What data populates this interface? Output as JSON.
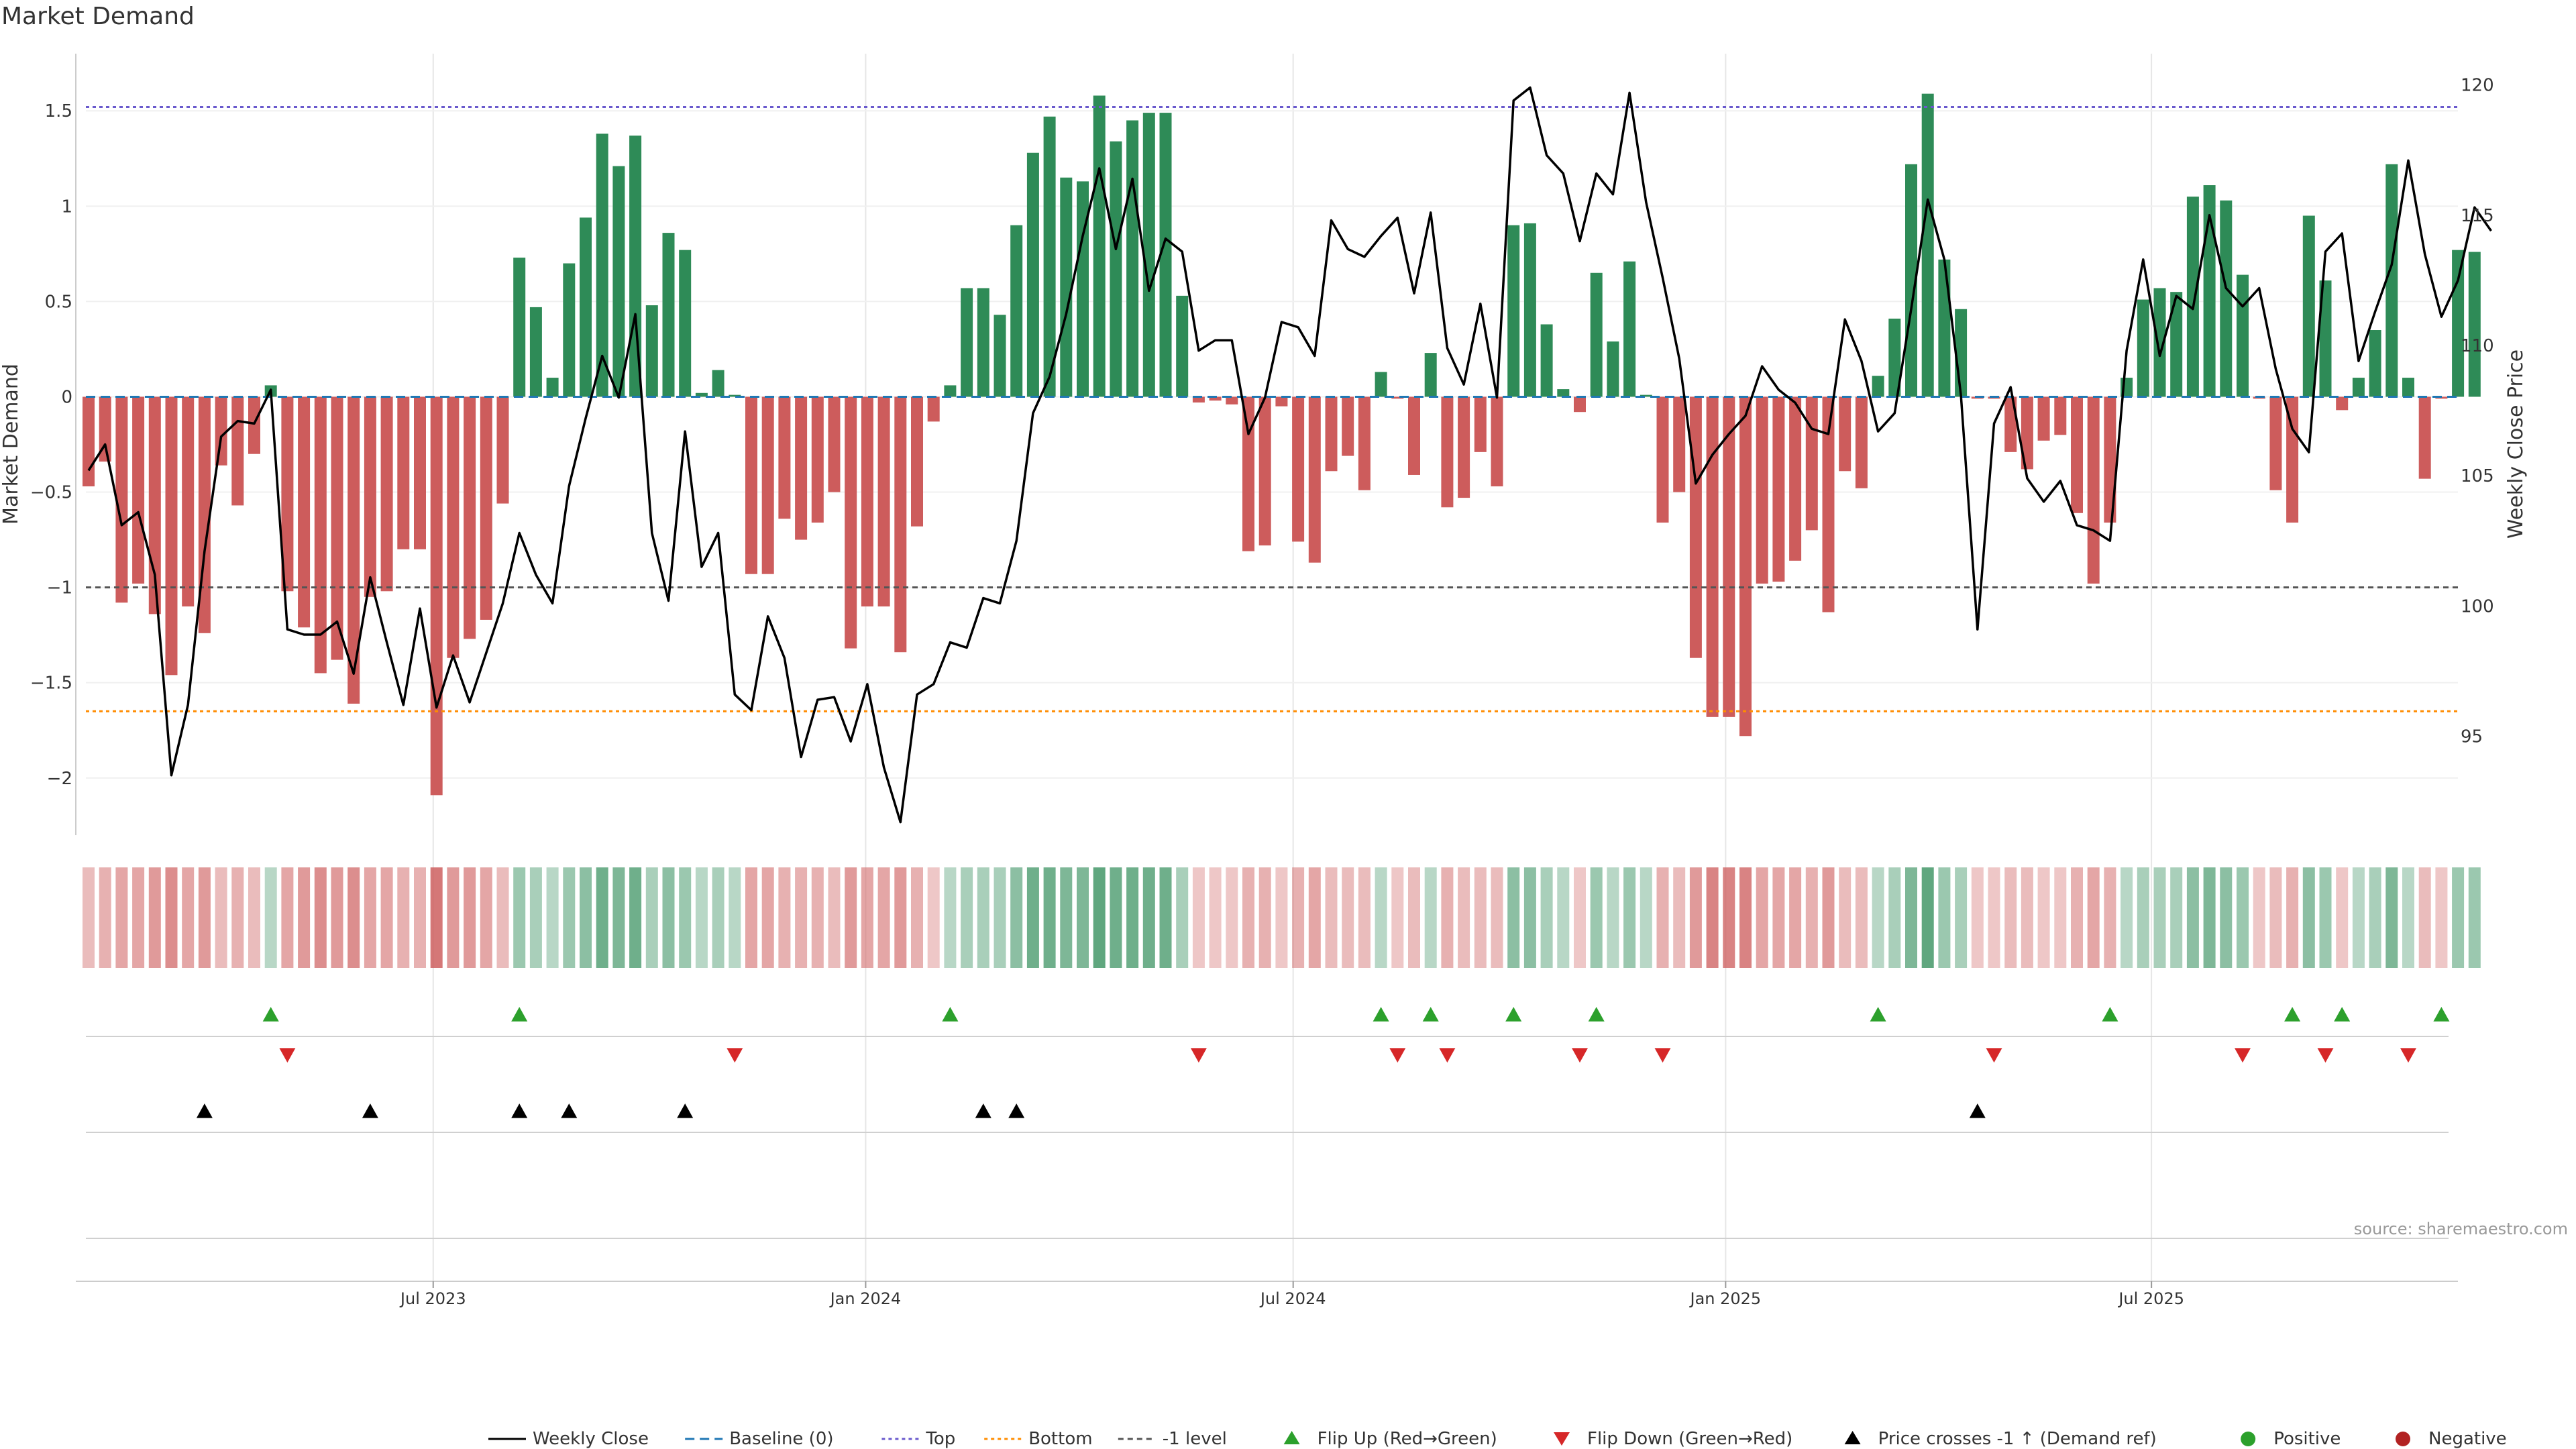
{
  "title": "Market Demand",
  "source": "source: sharemaestro.com",
  "colors": {
    "positive": "#2e8b57",
    "negative": "#cd5c5c",
    "price": "#000000",
    "baseline": "#1f77b4",
    "top": "#6a5acd",
    "bottom": "#ff8c00",
    "minus1": "#555555",
    "flip_up": "#2ca02c",
    "flip_down": "#d62728",
    "cross": "#000000",
    "grid": "#e6e6e6",
    "axis": "#cccccc"
  },
  "chart_data": {
    "type": "bar",
    "title": "Market Demand",
    "ylabel": "Market Demand",
    "y2label": "Weekly Close Price",
    "ylim": [
      -2.3,
      1.8
    ],
    "y2lim": [
      91.2,
      121.2
    ],
    "yticks": [
      -2,
      -1.5,
      -1,
      -0.5,
      0,
      0.5,
      1,
      1.5
    ],
    "ytick_labels": [
      "−2",
      "−1.5",
      "−1",
      "−0.5",
      "0",
      "0.5",
      "1",
      "1.5"
    ],
    "y2ticks": [
      95,
      100,
      105,
      110,
      115,
      120
    ],
    "y2tick_labels": [
      "95",
      "100",
      "105",
      "110",
      "115",
      "120"
    ],
    "x_dates": [
      "Jul 2023",
      "Jan 2024",
      "Jul 2024",
      "Jan 2025",
      "Jul 2025"
    ],
    "x_date_index": [
      20.8,
      46.9,
      72.7,
      98.8,
      124.5
    ],
    "levels": {
      "top": 1.52,
      "bottom": -1.65,
      "minus_one": -1.0,
      "baseline": 0
    },
    "demand": [
      -0.47,
      -0.34,
      -1.08,
      -0.98,
      -1.14,
      -1.46,
      -1.1,
      -1.24,
      -0.36,
      -0.57,
      -0.3,
      0.06,
      -1.02,
      -1.21,
      -1.45,
      -1.38,
      -1.61,
      -1.05,
      -1.02,
      -0.8,
      -0.8,
      -2.09,
      -1.37,
      -1.27,
      -1.17,
      -0.56,
      0.73,
      0.47,
      0.1,
      0.7,
      0.94,
      1.38,
      1.21,
      1.37,
      0.48,
      0.86,
      0.77,
      0.02,
      0.14,
      0.01,
      -0.93,
      -0.93,
      -0.64,
      -0.75,
      -0.66,
      -0.5,
      -1.32,
      -1.1,
      -1.1,
      -1.34,
      -0.68,
      -0.13,
      0.06,
      0.57,
      0.57,
      0.43,
      0.9,
      1.28,
      1.47,
      1.15,
      1.13,
      1.58,
      1.34,
      1.45,
      1.49,
      1.49,
      0.53,
      -0.03,
      -0.02,
      -0.04,
      -0.81,
      -0.78,
      -0.05,
      -0.76,
      -0.87,
      -0.39,
      -0.31,
      -0.49,
      0.13,
      -0.01,
      -0.41,
      0.23,
      -0.58,
      -0.53,
      -0.29,
      -0.47,
      0.9,
      0.91,
      0.38,
      0.04,
      -0.08,
      0.65,
      0.29,
      0.71,
      0.01,
      -0.66,
      -0.5,
      -1.37,
      -1.68,
      -1.68,
      -1.78,
      -0.98,
      -0.97,
      -0.86,
      -0.7,
      -1.13,
      -0.39,
      -0.48,
      0.11,
      0.41,
      1.22,
      1.59,
      0.72,
      0.46,
      -0.01,
      -0.01,
      -0.29,
      -0.38,
      -0.23,
      -0.2,
      -0.61,
      -0.98,
      -0.66,
      0.1,
      0.51,
      0.57,
      0.55,
      1.05,
      1.11,
      1.03,
      0.64,
      -0.01,
      -0.49,
      -0.66,
      0.95,
      0.61,
      -0.07,
      0.1,
      0.35,
      1.22,
      0.1,
      -0.43,
      -0.01,
      0.77,
      0.76
    ],
    "price": [
      105.2,
      106.2,
      103.1,
      103.6,
      101.2,
      93.5,
      96.2,
      102.1,
      106.5,
      107.1,
      107.0,
      108.3,
      99.1,
      98.9,
      98.9,
      99.4,
      97.4,
      101.1,
      98.6,
      96.2,
      99.9,
      96.1,
      98.1,
      96.3,
      98.2,
      100.1,
      102.8,
      101.2,
      100.1,
      104.6,
      107.2,
      109.6,
      108.0,
      111.2,
      102.8,
      100.2,
      106.7,
      101.5,
      102.8,
      96.6,
      96.0,
      99.6,
      98.0,
      94.2,
      96.4,
      96.5,
      94.8,
      97.0,
      93.8,
      91.7,
      96.6,
      97.0,
      98.6,
      98.4,
      100.3,
      100.1,
      102.5,
      107.4,
      108.8,
      111.2,
      114.2,
      116.8,
      113.7,
      116.4,
      112.1,
      114.1,
      113.6,
      109.8,
      110.2,
      110.2,
      106.6,
      108.0,
      110.9,
      110.7,
      109.6,
      114.8,
      113.7,
      113.4,
      114.2,
      114.9,
      112.0,
      115.1,
      109.9,
      108.5,
      111.6,
      108.0,
      119.4,
      119.9,
      117.3,
      116.6,
      114.0,
      116.6,
      115.8,
      119.7,
      115.5,
      112.6,
      109.5,
      104.7,
      105.8,
      106.6,
      107.3,
      109.2,
      108.3,
      107.8,
      106.8,
      106.6,
      111.0,
      109.4,
      106.7,
      107.4,
      111.4,
      115.6,
      113.3,
      108.1,
      99.1,
      107.0,
      108.4,
      104.9,
      104.0,
      104.8,
      103.1,
      102.9,
      102.5,
      109.8,
      113.3,
      109.6,
      111.9,
      111.4,
      115.0,
      112.2,
      111.5,
      112.2,
      109.1,
      106.8,
      105.9,
      113.6,
      114.3,
      109.4,
      111.3,
      113.1,
      117.1,
      113.5,
      111.1,
      112.5,
      115.3,
      114.4
    ],
    "heat": [
      0.3,
      0.4,
      0.5,
      0.5,
      0.6,
      0.7,
      0.5,
      0.6,
      0.3,
      0.4,
      0.3,
      0.2,
      0.5,
      0.6,
      0.7,
      0.6,
      0.7,
      0.5,
      0.5,
      0.4,
      0.4,
      0.9,
      0.6,
      0.6,
      0.5,
      0.3,
      0.4,
      0.3,
      0.2,
      0.4,
      0.5,
      0.7,
      0.6,
      0.7,
      0.3,
      0.5,
      0.4,
      0.2,
      0.3,
      0.2,
      0.5,
      0.5,
      0.4,
      0.4,
      0.4,
      0.3,
      0.6,
      0.5,
      0.5,
      0.6,
      0.4,
      0.2,
      0.2,
      0.3,
      0.3,
      0.3,
      0.5,
      0.7,
      0.7,
      0.6,
      0.6,
      0.8,
      0.7,
      0.7,
      0.7,
      0.7,
      0.3,
      0.2,
      0.2,
      0.2,
      0.4,
      0.4,
      0.2,
      0.4,
      0.5,
      0.3,
      0.3,
      0.3,
      0.2,
      0.2,
      0.3,
      0.2,
      0.4,
      0.3,
      0.3,
      0.3,
      0.5,
      0.5,
      0.3,
      0.2,
      0.2,
      0.4,
      0.2,
      0.4,
      0.2,
      0.4,
      0.3,
      0.6,
      0.8,
      0.8,
      0.8,
      0.5,
      0.5,
      0.5,
      0.4,
      0.6,
      0.3,
      0.3,
      0.2,
      0.3,
      0.6,
      0.8,
      0.4,
      0.3,
      0.2,
      0.2,
      0.3,
      0.3,
      0.2,
      0.2,
      0.4,
      0.5,
      0.4,
      0.2,
      0.3,
      0.3,
      0.3,
      0.5,
      0.6,
      0.5,
      0.4,
      0.2,
      0.3,
      0.4,
      0.5,
      0.4,
      0.2,
      0.2,
      0.3,
      0.6,
      0.2,
      0.3,
      0.2,
      0.4,
      0.4
    ],
    "flip_up_idx": [
      11,
      26,
      52,
      78,
      81,
      86,
      91,
      108,
      122,
      133,
      136,
      142
    ],
    "flip_down_idx": [
      12,
      39,
      67,
      79,
      82,
      90,
      95,
      115,
      130,
      135,
      140
    ],
    "cross_up_idx": [
      7,
      17,
      26,
      29,
      36,
      54,
      56,
      114
    ],
    "legend": [
      {
        "key": "price",
        "label": "Weekly Close"
      },
      {
        "key": "baseline",
        "label": "Baseline (0)"
      },
      {
        "key": "top",
        "label": "Top"
      },
      {
        "key": "bottom",
        "label": "Bottom"
      },
      {
        "key": "minus1",
        "label": "-1 level"
      },
      {
        "key": "flip_up",
        "label": "Flip Up (Red→Green)"
      },
      {
        "key": "flip_down",
        "label": "Flip Down (Green→Red)"
      },
      {
        "key": "cross",
        "label": "Price crosses -1 ↑ (Demand ref)"
      },
      {
        "key": "positive",
        "label": "Positive"
      },
      {
        "key": "negative",
        "label": "Negative"
      }
    ]
  }
}
